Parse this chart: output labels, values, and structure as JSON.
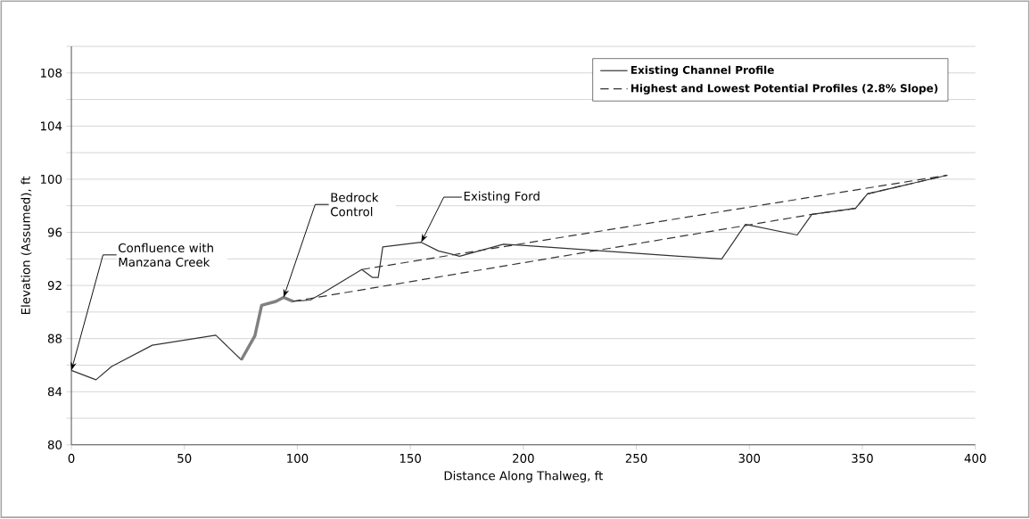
{
  "chart_data": {
    "type": "line",
    "xlabel": "Distance Along Thalweg, ft",
    "ylabel": "Elevation (Assumed), ft",
    "xlim": [
      0,
      400
    ],
    "xticks": [
      0,
      50,
      100,
      150,
      200,
      250,
      300,
      350,
      400
    ],
    "ylim": [
      80,
      110
    ],
    "yticks": [
      80,
      {
        "value": 82,
        "label": null
      },
      84,
      {
        "value": 86,
        "label": null
      },
      88,
      {
        "value": 90,
        "label": null
      },
      92,
      {
        "value": 94,
        "label": null
      },
      96,
      {
        "value": 98,
        "label": null
      },
      100,
      {
        "value": 102,
        "label": null
      },
      104,
      {
        "value": 106,
        "label": null
      },
      108,
      {
        "value": 110,
        "label": null
      }
    ],
    "grid": "y",
    "legend": "top right",
    "marker": "none",
    "series": [
      {
        "name": "Existing Channel Profile",
        "color": "#333333",
        "line_style": "solid",
        "x": [
          0,
          10.9,
          17.8,
          35.8,
          63.9,
          75.2,
          81.2,
          84.2,
          90.5,
          93.9,
          98.0,
          105.7,
          111.0,
          128.5,
          133.3,
          135.8,
          137.8,
          154.8,
          162.4,
          171.8,
          191.2,
          201.0,
          268.9,
          287.8,
          298.3,
          321.2,
          327.7,
          347.0,
          352.3,
          387.6
        ],
        "values": [
          85.6,
          84.9,
          85.9,
          87.5,
          88.25,
          86.4,
          88.2,
          90.5,
          90.8,
          91.1,
          90.8,
          90.9,
          91.4,
          93.2,
          92.6,
          92.6,
          94.9,
          95.25,
          94.6,
          94.2,
          95.1,
          95.0,
          94.2,
          94.0,
          96.6,
          95.8,
          97.35,
          97.8,
          98.9,
          100.3
        ]
      },
      {
        "color": "#808080",
        "line_style": "solid",
        "x": [
          75.2,
          81.2,
          84.2,
          90.5,
          93.9,
          98.0
        ],
        "values": [
          86.4,
          88.2,
          90.5,
          90.8,
          91.1,
          90.8
        ]
      },
      {
        "name": "Highest and Lowest Potential Profiles (2.8% Slope)",
        "color": "#333333",
        "line_style": "dashed",
        "x": [
          128.5,
          387.6
        ],
        "values": [
          93.2,
          100.3
        ]
      },
      {
        "color": "#333333",
        "line_style": "dashed",
        "x": [
          98.0,
          327.7,
          347.0,
          352.3,
          387.6
        ],
        "values": [
          90.8,
          97.35,
          97.8,
          98.9,
          100.3
        ]
      }
    ],
    "annotations": [
      {
        "text": "Confluence with Manzana Creek",
        "x": 0,
        "y": 85.6
      },
      {
        "text": "Bedrock Control",
        "x": 93.9,
        "y": 91.1
      },
      {
        "text": "Existing Ford",
        "x": 154.8,
        "y": 95.25
      }
    ]
  }
}
